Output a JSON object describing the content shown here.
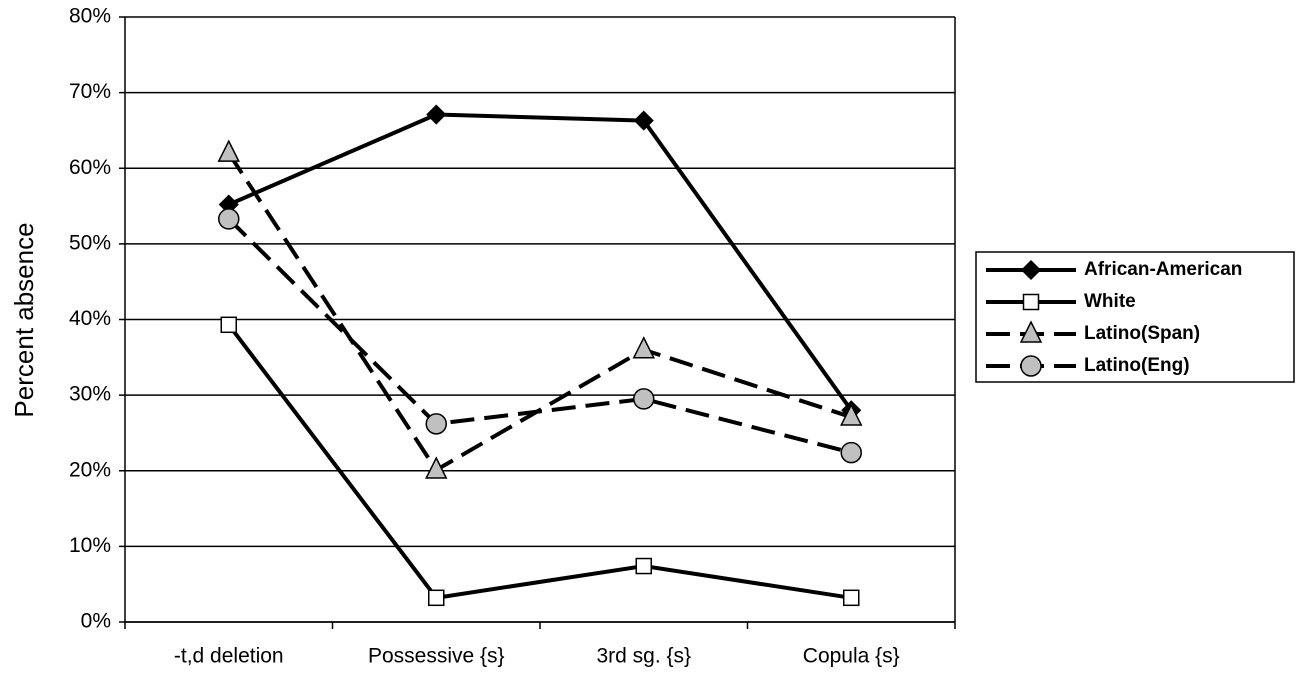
{
  "chart_data": {
    "type": "line",
    "y_label": "Percent absence",
    "categories": [
      "-t,d deletion",
      "Possessive {s}",
      "3rd sg. {s}",
      "Copula {s}"
    ],
    "series": [
      {
        "name": "African-American",
        "color": "#000000",
        "marker": "diamond",
        "marker_fill": "#000000",
        "dashed": false,
        "values": [
          55.2,
          67.1,
          66.3,
          28
        ]
      },
      {
        "name": "White",
        "color": "#000000",
        "marker": "square",
        "marker_fill": "#ffffff",
        "dashed": false,
        "values": [
          39.3,
          3.2,
          7.4,
          3.2
        ]
      },
      {
        "name": "Latino(Span)",
        "color": "#000000",
        "marker": "triangle",
        "marker_fill": "#c0c0c0",
        "dashed": true,
        "values": [
          62,
          20.1,
          36,
          27.1
        ]
      },
      {
        "name": "Latino(Eng)",
        "color": "#000000",
        "marker": "circle",
        "marker_fill": "#c0c0c0",
        "dashed": true,
        "values": [
          53.3,
          26.2,
          29.5,
          22.4
        ]
      }
    ],
    "ylim": [
      0,
      80
    ],
    "yticks": [
      {
        "value": 0,
        "label": "0%"
      },
      {
        "value": 10,
        "label": "10%"
      },
      {
        "value": 20,
        "label": "20%"
      },
      {
        "value": 30,
        "label": "30%"
      },
      {
        "value": 40,
        "label": "40%"
      },
      {
        "value": 50,
        "label": "50%"
      },
      {
        "value": 60,
        "label": "60%"
      },
      {
        "value": 70,
        "label": "70%"
      },
      {
        "value": 80,
        "label": "80%"
      }
    ],
    "grid": true,
    "legend": "right"
  }
}
